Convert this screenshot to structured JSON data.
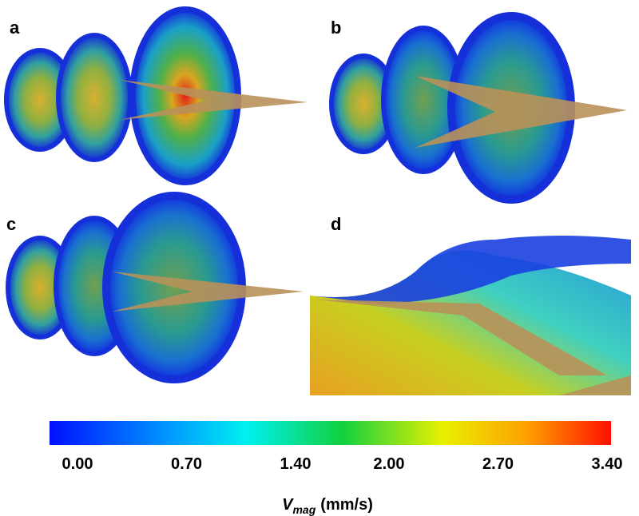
{
  "panels": [
    {
      "label": "a"
    },
    {
      "label": "b"
    },
    {
      "label": "c"
    },
    {
      "label": "d"
    }
  ],
  "colorbar": {
    "min": 0,
    "max": 3.4,
    "ticks": [
      {
        "value": 0,
        "label": "0.00"
      },
      {
        "value": 0.7,
        "label": "0.70"
      },
      {
        "value": 1.4,
        "label": "1.40"
      },
      {
        "value": 2.0,
        "label": "2.00"
      },
      {
        "value": 2.7,
        "label": "2.70"
      },
      {
        "value": 3.4,
        "label": "3.40"
      }
    ],
    "label": {
      "symbol": "V",
      "subscript": "mag",
      "unit": "(mm/s)"
    }
  }
}
